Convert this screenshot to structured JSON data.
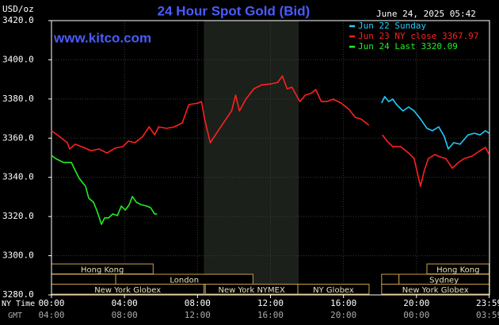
{
  "chart_data": {
    "type": "line",
    "title": "24 Hour Spot Gold (Bid)",
    "timestamp": "June 24, 2025 05:42",
    "website": "www.kitco.com",
    "y_label": "USD/oz",
    "x_label": "NY Time",
    "x2_label": "GMT",
    "xlim": [
      0,
      24
    ],
    "xticks": [
      {
        "value": 0,
        "label": "00:00"
      },
      {
        "value": 4,
        "label": "04:00"
      },
      {
        "value": 8,
        "label": "08:00"
      },
      {
        "value": 12,
        "label": "12:00"
      },
      {
        "value": 16,
        "label": "16:00"
      },
      {
        "value": 20,
        "label": "20:00"
      },
      {
        "value": 23.98,
        "label": "23:59"
      }
    ],
    "gmt_labels": [
      "04:00",
      "08:00",
      "12:00",
      "16:00",
      "20:00",
      "00:00",
      "03:59"
    ],
    "ylim": [
      3280,
      3420
    ],
    "yticks": [
      {
        "value": 3280,
        "label": "3280.0"
      },
      {
        "value": 3300,
        "label": "3300.0"
      },
      {
        "value": 3320,
        "label": "3320.0"
      },
      {
        "value": 3340,
        "label": "3340.0"
      },
      {
        "value": 3360,
        "label": "3360.0"
      },
      {
        "value": 3380,
        "label": "3380.0"
      },
      {
        "value": 3400,
        "label": "3400.0"
      },
      {
        "value": 3420,
        "label": "3420.0"
      }
    ],
    "grid": true,
    "shaded_range": [
      8.35,
      13.55
    ],
    "series": [
      {
        "name": "Jun 22 Sunday",
        "color": "#22ccff",
        "x": [
          18.09,
          18.26,
          18.48,
          18.7,
          18.91,
          19.26,
          19.57,
          19.87,
          20.22,
          20.57,
          20.87,
          21.22,
          21.52,
          21.74,
          22.04,
          22.39,
          22.83,
          23.17,
          23.48,
          23.78,
          23.98
        ],
        "values": [
          3377.9,
          3381.2,
          3378.7,
          3379.9,
          3377.1,
          3373.9,
          3375.9,
          3373.9,
          3369.8,
          3365.0,
          3363.8,
          3365.8,
          3360.9,
          3354.5,
          3357.7,
          3356.9,
          3361.7,
          3362.5,
          3361.7,
          3363.8,
          3362.5
        ]
      },
      {
        "name": "Jun 23 NY close 3367.97",
        "color": "#ff2020",
        "x": [
          0,
          0.43,
          0.87,
          1.0,
          1.3,
          1.74,
          2.17,
          2.61,
          3.04,
          3.48,
          3.91,
          4.22,
          4.57,
          5.0,
          5.35,
          5.65,
          5.87,
          6.3,
          6.74,
          7.17,
          7.52,
          8.04,
          8.22,
          8.39,
          8.7,
          9.13,
          9.57,
          9.87,
          10.09,
          10.3,
          10.65,
          11.09,
          11.52,
          11.96,
          12.39,
          12.65,
          12.91,
          13.17,
          13.61,
          13.91,
          14.22,
          14.48,
          14.78,
          15.09,
          15.43,
          15.87,
          16.3,
          16.65,
          16.96,
          17.39,
          17.75,
          18.13,
          18.39,
          18.7,
          19.13,
          19.57,
          19.87,
          20.22,
          20.43,
          20.65,
          21.0,
          21.3,
          21.61,
          21.96,
          22.3,
          22.61,
          23.04,
          23.48,
          23.78,
          23.98
        ],
        "values": [
          3363.8,
          3360.9,
          3357.7,
          3354.5,
          3356.9,
          3355.3,
          3353.6,
          3354.5,
          3352.4,
          3354.9,
          3355.7,
          3358.5,
          3357.7,
          3360.9,
          3365.8,
          3361.7,
          3365.8,
          3365.0,
          3365.8,
          3367.8,
          3377.1,
          3377.9,
          3378.7,
          3369.8,
          3357.7,
          3363.8,
          3369.8,
          3373.9,
          3382.0,
          3373.9,
          3379.9,
          3385.2,
          3387.2,
          3387.6,
          3388.4,
          3391.7,
          3385.2,
          3386.0,
          3378.7,
          3382.0,
          3382.8,
          3384.8,
          3378.7,
          3378.7,
          3379.9,
          3377.9,
          3374.7,
          3370.6,
          3369.8,
          3366.6,
          null,
          3361.7,
          3358.5,
          3355.7,
          3355.7,
          3352.4,
          3349.6,
          3335.4,
          3343.5,
          3349.6,
          3351.6,
          3350.4,
          3349.6,
          3344.7,
          3347.6,
          3349.6,
          3350.8,
          3353.6,
          3355.3,
          3351.6
        ]
      },
      {
        "name": "Jun 24 Last 3320.09",
        "color": "#22ee22",
        "x": [
          0,
          0.22,
          0.65,
          1.09,
          1.3,
          1.52,
          1.87,
          2.04,
          2.3,
          2.48,
          2.74,
          2.91,
          3.13,
          3.35,
          3.61,
          3.83,
          4.04,
          4.26,
          4.43,
          4.65,
          4.91,
          5.22,
          5.43,
          5.65,
          5.78
        ],
        "values": [
          3351.2,
          3349.6,
          3347.6,
          3347.6,
          3343.5,
          3339.5,
          3335.4,
          3329.4,
          3327.3,
          3323.3,
          3316.0,
          3319.3,
          3319.3,
          3321.3,
          3320.5,
          3325.3,
          3323.3,
          3326.1,
          3330.2,
          3327.3,
          3326.1,
          3325.3,
          3324.5,
          3321.3,
          3321.3
        ]
      }
    ],
    "sessions": [
      {
        "label": "Hong Kong",
        "start": 0,
        "end": 5.57,
        "row": 0
      },
      {
        "label": null,
        "start": 0,
        "end": 3.52,
        "row": 1
      },
      {
        "label": "London",
        "start": 3.52,
        "end": 11.04,
        "row": 1
      },
      {
        "label": "New York Globex",
        "start": 0,
        "end": 8.35,
        "row": 2
      },
      {
        "label": "New York NYMEX",
        "start": 8.43,
        "end": 13.5,
        "row": 2
      },
      {
        "label": "NY Globex",
        "start": 13.5,
        "end": 17.4,
        "row": 2
      },
      {
        "label": "Hong Kong",
        "start": 20.57,
        "end": 23.98,
        "row": 0
      },
      {
        "label": null,
        "start": 18.09,
        "end": 19.04,
        "row": 1
      },
      {
        "label": "Sydney",
        "start": 19.04,
        "end": 23.98,
        "row": 1
      },
      {
        "label": "New York Globex",
        "start": 18.09,
        "end": 23.98,
        "row": 2
      }
    ]
  }
}
